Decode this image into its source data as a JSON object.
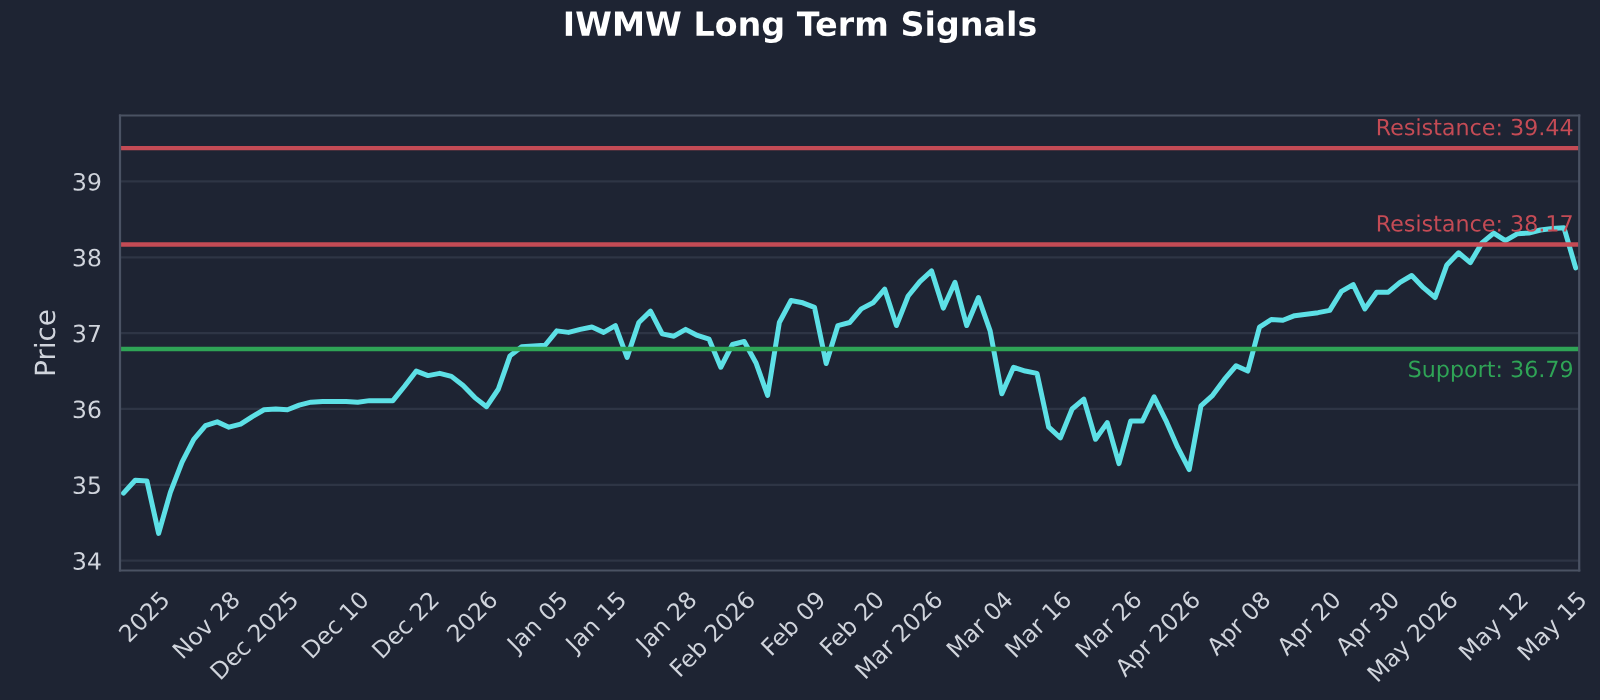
{
  "chart_data": {
    "type": "line",
    "title": "IWMW Long Term Signals",
    "ylabel": "Price",
    "categories": [
      null,
      null,
      null,
      "2025",
      null,
      null,
      null,
      null,
      null,
      "Nov 28",
      null,
      null,
      null,
      null,
      "Dec 2025",
      null,
      null,
      null,
      null,
      null,
      "Dec 10",
      null,
      null,
      null,
      null,
      null,
      "Dec 22",
      null,
      null,
      null,
      null,
      "2026",
      null,
      null,
      null,
      null,
      null,
      "Jan 05",
      null,
      null,
      null,
      null,
      "Jan 15",
      null,
      null,
      null,
      null,
      null,
      "Jan 28",
      null,
      null,
      null,
      null,
      "Feb 2026",
      null,
      null,
      null,
      null,
      null,
      "Feb 09",
      null,
      null,
      null,
      null,
      "Feb 20",
      null,
      null,
      null,
      null,
      "Mar 2026",
      null,
      null,
      null,
      null,
      null,
      "Mar 04",
      null,
      null,
      null,
      null,
      "Mar 16",
      null,
      null,
      null,
      null,
      null,
      "Mar 26",
      null,
      null,
      null,
      null,
      "Apr 2026",
      null,
      null,
      null,
      null,
      null,
      "Apr 08",
      null,
      null,
      null,
      null,
      null,
      "Apr 20",
      null,
      null,
      null,
      null,
      "Apr 30",
      null,
      null,
      null,
      null,
      "May 2026",
      null,
      null,
      null,
      null,
      null,
      "May 12",
      null,
      null,
      null,
      null,
      "May 15"
    ],
    "series": [
      {
        "color": "#5de0e6",
        "values": [
          34.89,
          35.06,
          35.05,
          34.36,
          34.9,
          35.3,
          35.6,
          35.78,
          35.83,
          35.76,
          35.8,
          35.9,
          35.99,
          36.0,
          35.99,
          36.05,
          36.09,
          36.1,
          36.1,
          36.1,
          36.09,
          36.11,
          36.11,
          36.11,
          36.3,
          36.5,
          36.44,
          36.47,
          36.43,
          36.31,
          36.15,
          36.03,
          36.26,
          36.7,
          36.82,
          36.83,
          36.84,
          37.03,
          37.01,
          37.05,
          37.08,
          37.01,
          37.1,
          36.68,
          37.14,
          37.29,
          36.99,
          36.96,
          37.05,
          36.97,
          36.92,
          36.55,
          36.85,
          36.89,
          36.61,
          36.18,
          37.14,
          37.43,
          37.4,
          37.34,
          36.6,
          37.1,
          37.14,
          37.32,
          37.4,
          37.58,
          37.1,
          37.49,
          37.68,
          37.82,
          37.33,
          37.67,
          37.1,
          37.47,
          37.03,
          36.2,
          36.55,
          36.5,
          36.47,
          35.76,
          35.62,
          36.0,
          36.13,
          35.6,
          35.82,
          35.28,
          35.84,
          35.84,
          36.16,
          35.85,
          35.5,
          35.2,
          36.04,
          36.18,
          36.39,
          36.57,
          36.5,
          37.08,
          37.18,
          37.17,
          37.23,
          37.25,
          37.27,
          37.3,
          37.55,
          37.64,
          37.32,
          37.54,
          37.54,
          37.67,
          37.76,
          37.6,
          37.47,
          37.9,
          38.06,
          37.93,
          38.19,
          38.32,
          38.22,
          38.31,
          38.32,
          38.36,
          38.38,
          38.39,
          37.86
        ]
      }
    ],
    "ylim": [
      33.87,
      39.87
    ],
    "yticks": [
      34,
      35,
      36,
      37,
      38,
      39
    ],
    "grid": "y",
    "line_style": "solid",
    "marker": "none",
    "ref_lines": [
      {
        "axis": "y",
        "value": 39.44,
        "label": "Resistance: 39.44",
        "color": "#c44b55"
      },
      {
        "axis": "y",
        "value": 38.17,
        "label": "Resistance: 38.17",
        "color": "#c44b55"
      },
      {
        "axis": "y",
        "value": 36.79,
        "label": "Support: 36.79",
        "color": "#2fa456"
      }
    ]
  }
}
